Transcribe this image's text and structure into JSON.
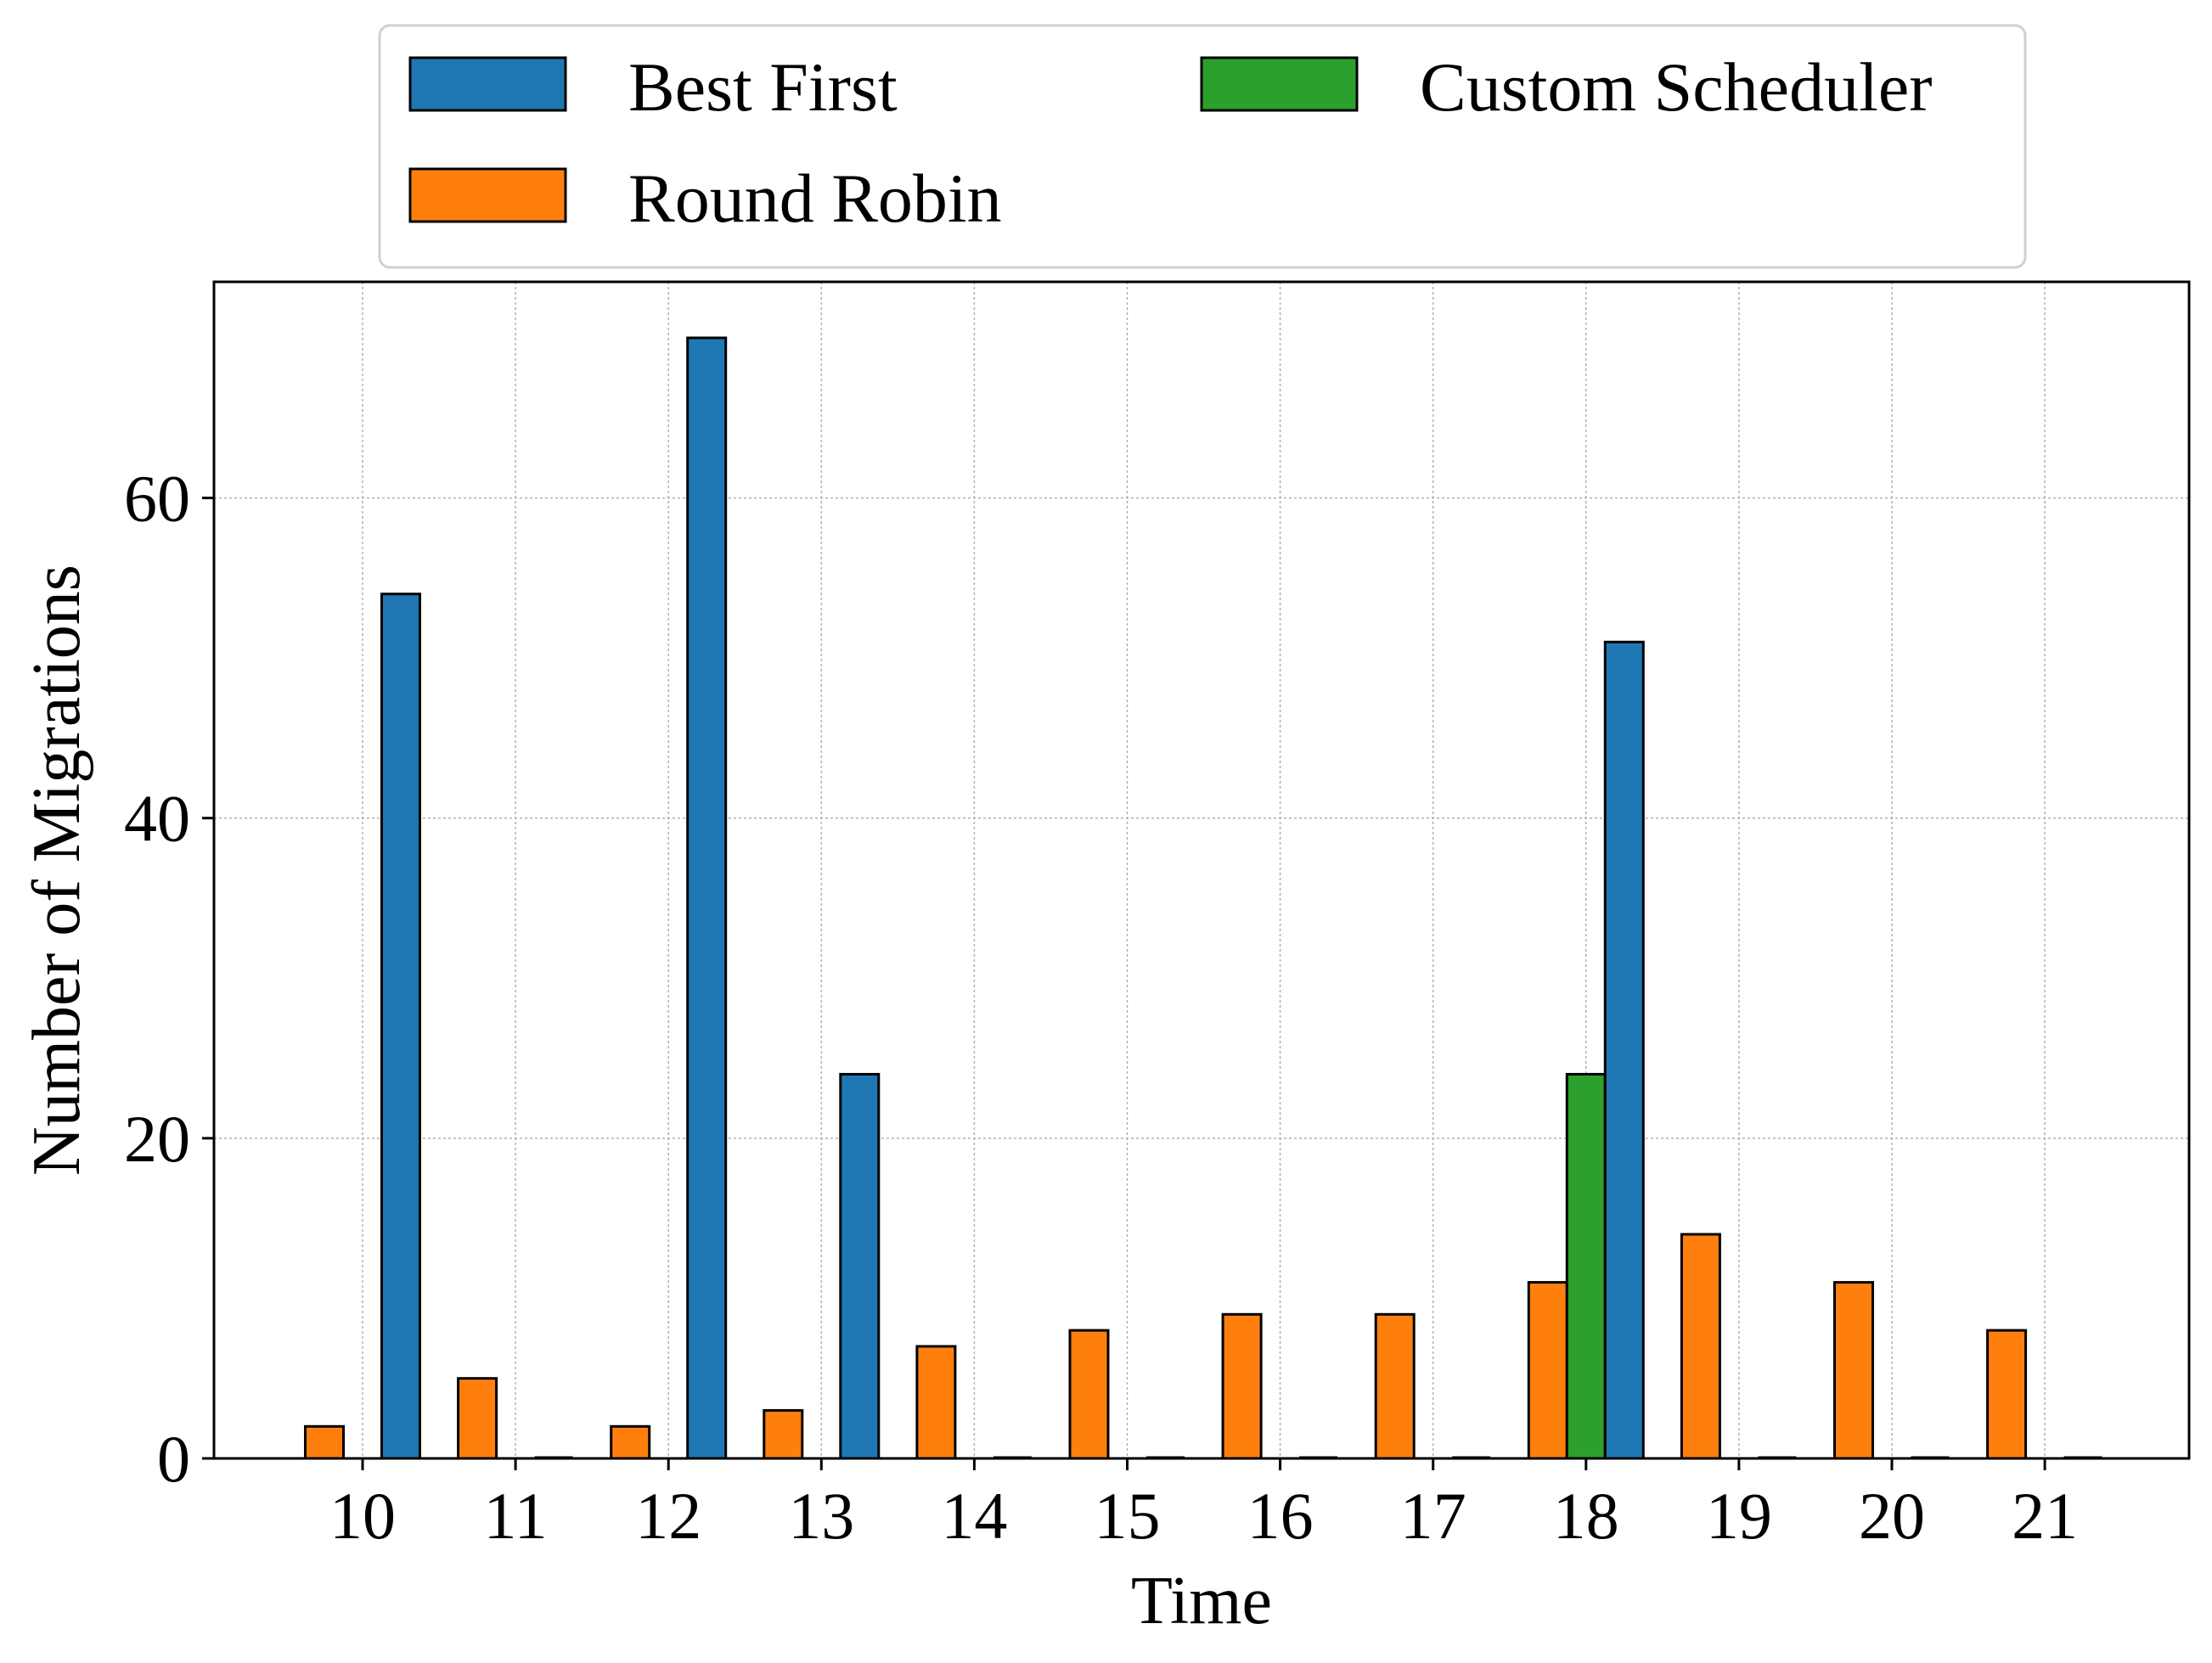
{
  "chart_data": {
    "type": "bar",
    "title": "",
    "xlabel": "Time",
    "ylabel": "Number of Migrations",
    "categories": [
      "10",
      "11",
      "12",
      "13",
      "14",
      "15",
      "16",
      "17",
      "18",
      "19",
      "20",
      "21"
    ],
    "series": [
      {
        "name": "Round Robin",
        "color": "#ff7f0e",
        "values": [
          2,
          5,
          2,
          3,
          7,
          8,
          9,
          9,
          11,
          14,
          11,
          8
        ]
      },
      {
        "name": "Custom Scheduler",
        "color": "#2ca02c",
        "values": [
          0,
          0,
          0,
          0,
          0,
          0,
          0,
          0,
          24,
          0,
          0,
          0
        ]
      },
      {
        "name": "Best First",
        "color": "#1f77b4",
        "values": [
          54,
          0,
          70,
          24,
          0,
          0,
          0,
          0,
          51,
          0,
          0,
          0
        ]
      }
    ],
    "yticks": [
      "0",
      "20",
      "40",
      "60"
    ],
    "ylim": [
      0,
      73.5
    ],
    "grid": true,
    "legend": {
      "placement": "top-center, above plot",
      "columns": 2,
      "entries": [
        {
          "label": "Best First",
          "color": "#1f77b4"
        },
        {
          "label": "Custom Scheduler",
          "color": "#2ca02c"
        },
        {
          "label": "Round Robin",
          "color": "#ff7f0e"
        }
      ]
    }
  }
}
